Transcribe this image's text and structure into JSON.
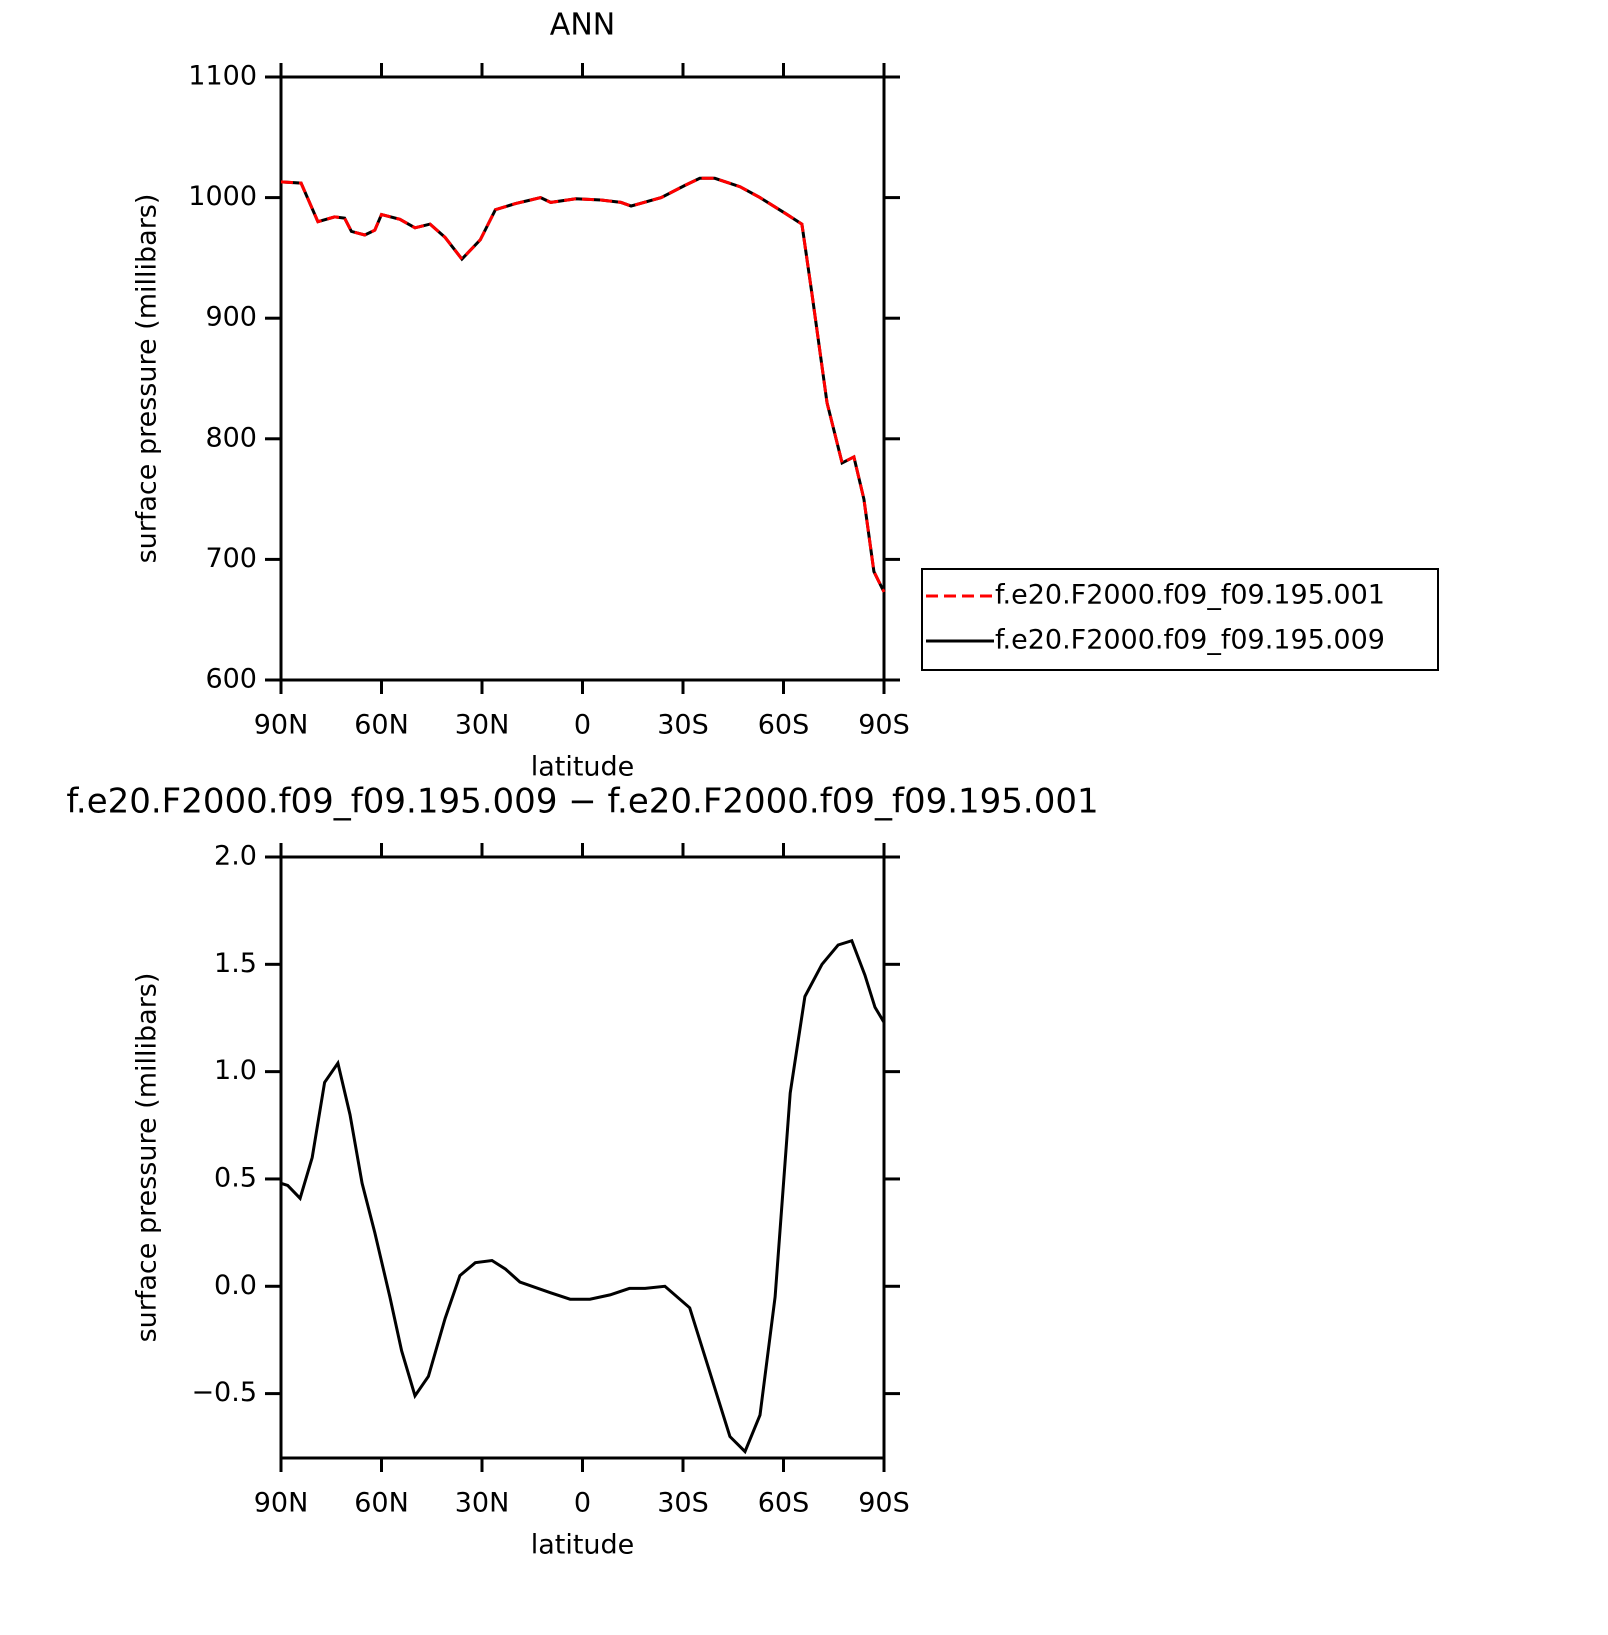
{
  "chart_data": [
    {
      "type": "line",
      "title": "ANN",
      "xlabel": "latitude",
      "ylabel": "surface pressure (millibars)",
      "x": [
        90,
        84,
        79,
        74,
        71,
        69,
        65,
        62,
        60,
        54.5,
        50,
        45.5,
        41,
        36,
        30.5,
        26,
        20,
        15.5,
        12.5,
        9.5,
        2,
        -5.5,
        -11.5,
        -14.5,
        -23.5,
        -30.5,
        -35,
        -39.5,
        -47,
        -53,
        -60.5,
        -65.5,
        -68.5,
        -73,
        -77.5,
        -81,
        -84,
        -87,
        -90
      ],
      "xlim": [
        90,
        -90
      ],
      "xticks": [
        {
          "value": 90,
          "label": "90N"
        },
        {
          "value": 60,
          "label": "60N"
        },
        {
          "value": 30,
          "label": "30N"
        },
        0,
        {
          "value": -30,
          "label": "30S"
        },
        {
          "value": -60,
          "label": "60S"
        },
        {
          "value": -90,
          "label": "90S"
        }
      ],
      "ylim": [
        600,
        1100
      ],
      "yticks": [
        600,
        700,
        800,
        900,
        1000,
        1100
      ],
      "legend": "right",
      "series": [
        {
          "name": "f.e20.F2000.f09_f09.195.001",
          "color": "#ff0000",
          "linestyle": "dashed",
          "values": [
            1013,
            1012,
            980,
            984,
            983,
            972,
            969,
            973,
            986,
            982,
            975,
            978,
            967,
            949,
            965,
            990,
            995,
            998,
            1000,
            996,
            999,
            998,
            996,
            993,
            1000,
            1010,
            1016,
            1016,
            1009,
            1000,
            987,
            978,
            920,
            830,
            780,
            785,
            750,
            690,
            673
          ]
        },
        {
          "name": "f.e20.F2000.f09_f09.195.009",
          "color": "#000000",
          "linestyle": "solid",
          "values": [
            1013,
            1012,
            980,
            984,
            983,
            972,
            969,
            973,
            986,
            982,
            975,
            978,
            967,
            949,
            965,
            990,
            995,
            998,
            1000,
            996,
            999,
            998,
            996,
            993,
            1000,
            1010,
            1016,
            1016,
            1009,
            1000,
            987,
            978,
            920,
            830,
            780,
            785,
            750,
            690,
            673
          ]
        }
      ]
    },
    {
      "type": "line",
      "title": "f.e20.F2000.f09_f09.195.009 − f.e20.F2000.f09_f09.195.001",
      "xlabel": "latitude",
      "ylabel": "surface pressure (millibars)",
      "x": [
        90,
        88,
        84.3,
        80.7,
        77,
        73,
        69.4,
        65.8,
        62,
        57.5,
        54,
        50,
        46,
        41,
        36.6,
        32,
        27,
        23,
        18.7,
        9.6,
        3.7,
        -2.2,
        -8.2,
        -14,
        -18.7,
        -24.6,
        -32,
        -38,
        -44,
        -48.5,
        -53,
        -57.5,
        -62,
        -66.4,
        -71.5,
        -76.3,
        -80.4,
        -84.3,
        -87.3,
        -90
      ],
      "xlim": [
        90,
        -90
      ],
      "xticks": [
        {
          "value": 90,
          "label": "90N"
        },
        {
          "value": 60,
          "label": "60N"
        },
        {
          "value": 30,
          "label": "30N"
        },
        0,
        {
          "value": -30,
          "label": "30S"
        },
        {
          "value": -60,
          "label": "60S"
        },
        {
          "value": -90,
          "label": "90S"
        }
      ],
      "ylim": [
        -0.8,
        2.0
      ],
      "yticks": [
        {
          "value": -0.5,
          "label": "−0.5"
        },
        {
          "value": 0,
          "label": "0.0"
        },
        0.5,
        {
          "value": 1,
          "label": "1.0"
        },
        1.5,
        {
          "value": 2,
          "label": "2.0"
        }
      ],
      "series": [
        {
          "color": "#000000",
          "linestyle": "solid",
          "values": [
            0.48,
            0.47,
            0.41,
            0.6,
            0.95,
            1.04,
            0.8,
            0.48,
            0.25,
            -0.05,
            -0.3,
            -0.51,
            -0.42,
            -0.15,
            0.05,
            0.11,
            0.12,
            0.08,
            0.02,
            -0.03,
            -0.06,
            -0.06,
            -0.04,
            -0.01,
            -0.01,
            0.0,
            -0.1,
            -0.4,
            -0.7,
            -0.77,
            -0.6,
            -0.05,
            0.9,
            1.35,
            1.5,
            1.59,
            1.61,
            1.45,
            1.3,
            1.23
          ]
        }
      ]
    }
  ]
}
